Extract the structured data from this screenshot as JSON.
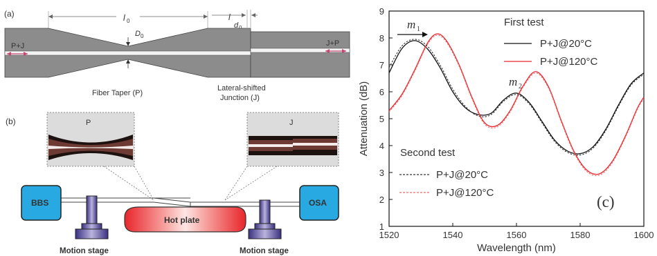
{
  "panel_a": {
    "label": "(a)",
    "dim_l0": "l",
    "dim_l0_sub": "0",
    "dim_d0_main": "D",
    "dim_d0_sub": "0",
    "dim_l": "l",
    "dim_d0": "d",
    "dim_d0b_sub": "0",
    "left_label": "P+J",
    "right_label": "J+P",
    "taper_caption": "Fiber Taper (P)",
    "junction_caption_1": "Lateral-shifted",
    "junction_caption_2": "Junction (J)"
  },
  "panel_b": {
    "label": "(b)",
    "inset_p": "P",
    "inset_j": "J",
    "source": "BBS",
    "analyzer": "OSA",
    "heater": "Hot plate",
    "stage_left": "Motion stage",
    "stage_right": "Motion stage",
    "colors": {
      "box": "#29a9e1",
      "stage": "#4a4090",
      "heater": "#e8262b"
    }
  },
  "panel_c": {
    "label": "(c)",
    "legend_first_title": "First test",
    "legend_second_title": "Second test",
    "peak_m1": "m",
    "peak_m1_sub": "1",
    "peak_m2": "m",
    "peak_m2_sub": "2"
  },
  "chart_data": {
    "type": "line",
    "xlabel": "Wavelength (nm)",
    "ylabel": "Attenuation (dB)",
    "xlim": [
      1520,
      1600
    ],
    "ylim": [
      1,
      9
    ],
    "xticks": [
      "1520",
      "1540",
      "1560",
      "1580",
      "1600"
    ],
    "yticks": [
      "1",
      "2",
      "3",
      "4",
      "5",
      "6",
      "7",
      "8",
      "9"
    ],
    "grid": false,
    "legend_position": "top-right",
    "series": [
      {
        "name": "P+J@20°C",
        "group": "First test",
        "color": "#111111",
        "style": "solid",
        "x": [
          1520,
          1524,
          1528,
          1532,
          1536,
          1540,
          1544,
          1548,
          1552,
          1556,
          1560,
          1564,
          1568,
          1572,
          1576,
          1580,
          1584,
          1588,
          1592,
          1596,
          1600
        ],
        "y": [
          6.7,
          7.6,
          7.9,
          7.6,
          6.9,
          6.0,
          5.4,
          5.15,
          5.2,
          5.7,
          5.95,
          5.6,
          4.9,
          4.2,
          3.8,
          3.7,
          3.95,
          4.6,
          5.5,
          6.3,
          6.7
        ]
      },
      {
        "name": "P+J@120°C",
        "group": "First test",
        "color": "#e8262b",
        "style": "solid",
        "x": [
          1520,
          1524,
          1528,
          1532,
          1535,
          1538,
          1542,
          1546,
          1550,
          1554,
          1558,
          1562,
          1566,
          1570,
          1574,
          1578,
          1582,
          1586,
          1590,
          1594,
          1598,
          1600
        ],
        "y": [
          5.3,
          5.9,
          6.8,
          7.8,
          8.15,
          7.9,
          7.0,
          5.8,
          4.85,
          4.75,
          5.3,
          6.2,
          6.75,
          6.2,
          4.95,
          3.8,
          3.1,
          2.95,
          3.4,
          4.3,
          5.4,
          5.8
        ]
      },
      {
        "name": "P+J@20°C",
        "group": "Second test",
        "color": "#333333",
        "style": "dashed",
        "x": [
          1520,
          1524,
          1528,
          1532,
          1536,
          1540,
          1544,
          1548,
          1552,
          1556,
          1560,
          1564,
          1568,
          1572,
          1576,
          1580,
          1584,
          1588,
          1592,
          1596,
          1600
        ],
        "y": [
          6.9,
          7.7,
          7.95,
          7.7,
          7.0,
          6.1,
          5.45,
          5.1,
          5.15,
          5.65,
          5.9,
          5.55,
          4.85,
          4.15,
          3.75,
          3.65,
          3.9,
          4.55,
          5.45,
          6.25,
          6.65
        ]
      },
      {
        "name": "P+J@120°C",
        "group": "Second test",
        "color": "#f06868",
        "style": "dashed",
        "x": [
          1520,
          1524,
          1528,
          1532,
          1535,
          1538,
          1542,
          1546,
          1550,
          1554,
          1558,
          1562,
          1566,
          1570,
          1574,
          1578,
          1582,
          1586,
          1590,
          1594,
          1598,
          1600
        ],
        "y": [
          5.25,
          5.85,
          6.75,
          7.75,
          8.1,
          7.85,
          6.95,
          5.75,
          4.8,
          4.7,
          5.25,
          6.15,
          6.7,
          6.15,
          4.9,
          3.75,
          3.05,
          2.9,
          3.35,
          4.25,
          5.35,
          5.75
        ]
      }
    ]
  }
}
